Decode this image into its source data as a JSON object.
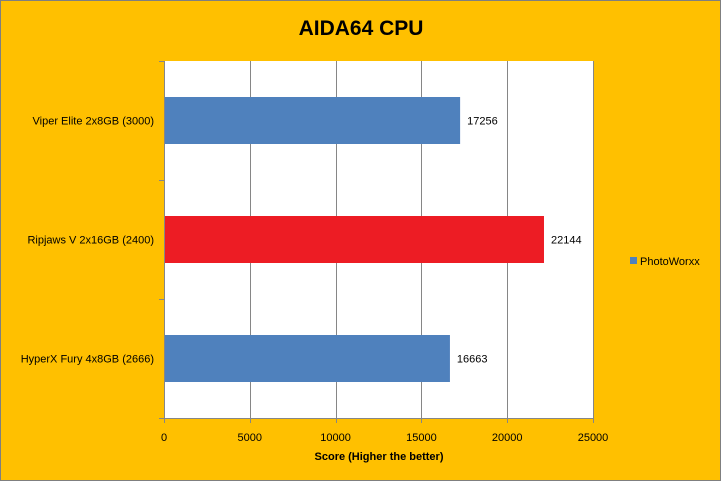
{
  "chart_data": {
    "type": "bar",
    "orientation": "horizontal",
    "title": "AIDA64 CPU",
    "xlabel": "Score (Higher the better)",
    "ylabel": "",
    "categories": [
      "Viper Elite 2x8GB (3000)",
      "Ripjaws V 2x16GB (2400)",
      "HyperX Fury 4x8GB (2666)"
    ],
    "series": [
      {
        "name": "PhotoWorxx",
        "values": [
          17256,
          22144,
          16663
        ]
      }
    ],
    "bar_colors": [
      "#4F81BD",
      "#ED1C24",
      "#4F81BD"
    ],
    "series_color": "#4F81BD",
    "background_color": "#FFC000",
    "plot_background": "#FFFFFF",
    "gridline_color": "#868686",
    "xlim": [
      0,
      25000
    ],
    "xticks": [
      0,
      5000,
      10000,
      15000,
      20000,
      25000
    ],
    "xtick_labels": [
      "0",
      "5000",
      "10000",
      "15000",
      "20000",
      "25000"
    ],
    "data_labels": [
      "17256",
      "22144",
      "16663"
    ],
    "grid": true,
    "legend_position": "right"
  }
}
